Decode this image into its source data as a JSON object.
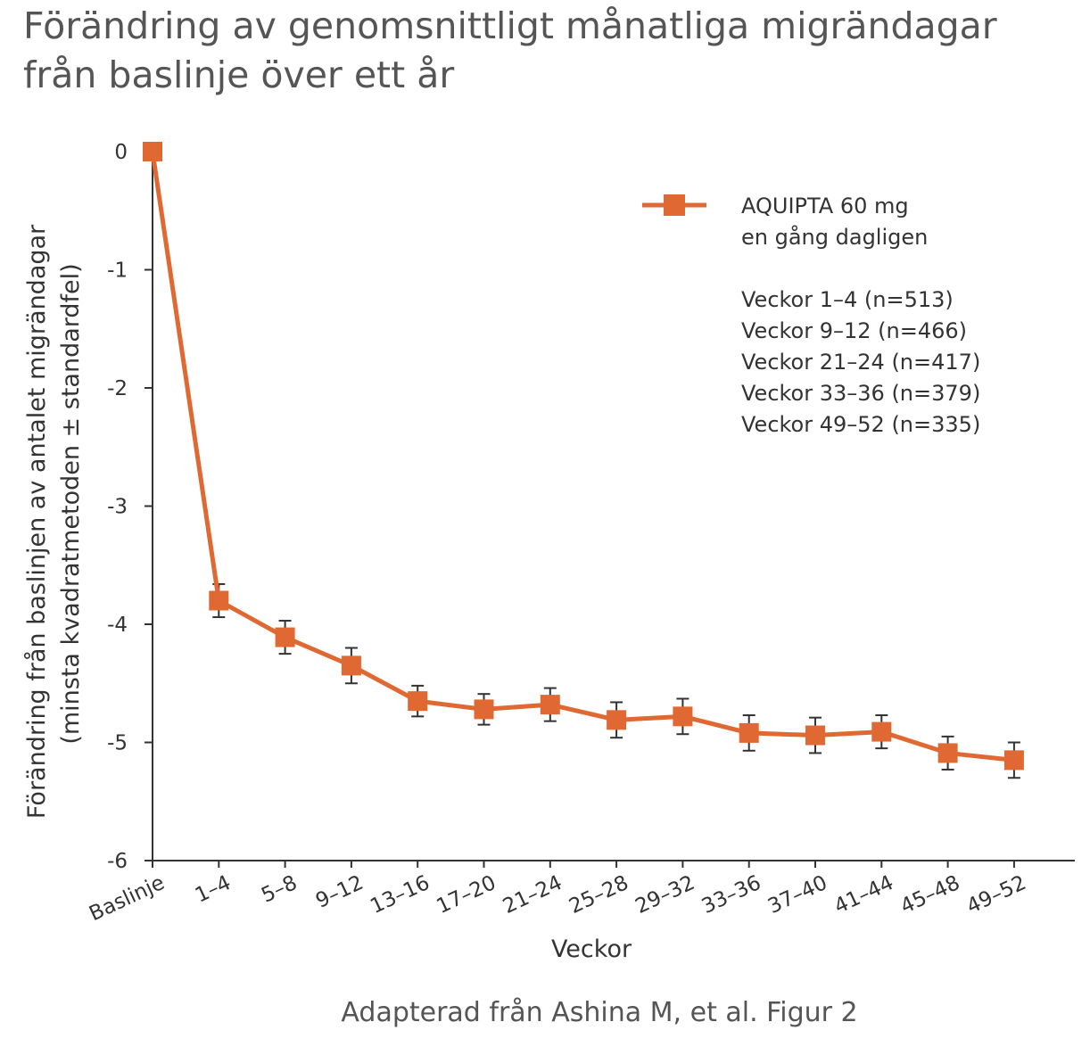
{
  "title": {
    "line1": "Förändring av genomsnittligt månatliga migrändagar",
    "line2": "från baslinje över ett år"
  },
  "source_note": "Adapterad från Ashina M, et al. Figur 2",
  "colors": {
    "series": "#E06832",
    "axis": "#333333",
    "errorbar": "#333333"
  },
  "chart_data": {
    "type": "line",
    "title": "Förändring av genomsnittligt månatliga migrändagar från baslinje över ett år",
    "xlabel": "Veckor",
    "ylabel_line1": "Förändring från baslinjen av antalet migrändagar",
    "ylabel_line2": "(minsta kvadratmetoden ± standardfel)",
    "ylim": [
      -6,
      0
    ],
    "yticks": [
      0,
      -1,
      -2,
      -3,
      -4,
      -5,
      -6
    ],
    "ytick_labels": [
      "0",
      "-1",
      "-2",
      "-3",
      "-4",
      "-5",
      "-6"
    ],
    "categories": [
      "Baslinje",
      "1–4",
      "5–8",
      "9–12",
      "13–16",
      "17–20",
      "21–24",
      "25–28",
      "29–32",
      "33–36",
      "37–40",
      "41–44",
      "45–48",
      "49–52"
    ],
    "series": [
      {
        "name": "AQUIPTA 60 mg en gång dagligen",
        "x_index": [
          0,
          1,
          2,
          3,
          4,
          5,
          6,
          7,
          8,
          9,
          10,
          11,
          12,
          13
        ],
        "values": [
          0,
          -3.8,
          -4.11,
          -4.35,
          -4.65,
          -4.72,
          -4.68,
          -4.81,
          -4.78,
          -4.92,
          -4.94,
          -4.91,
          -5.09,
          -5.15
        ],
        "se": [
          0,
          0.14,
          0.14,
          0.15,
          0.13,
          0.13,
          0.14,
          0.15,
          0.15,
          0.15,
          0.15,
          0.14,
          0.14,
          0.15
        ]
      }
    ],
    "legend": {
      "position": "top-right",
      "label_line1": "AQUIPTA 60 mg",
      "label_line2": "en gång dagligen",
      "n_lines": [
        "Veckor 1–4 (n=513)",
        "Veckor 9–12 (n=466)",
        "Veckor 21–24 (n=417)",
        "Veckor 33–36 (n=379)",
        "Veckor 49–52 (n=335)"
      ]
    }
  }
}
